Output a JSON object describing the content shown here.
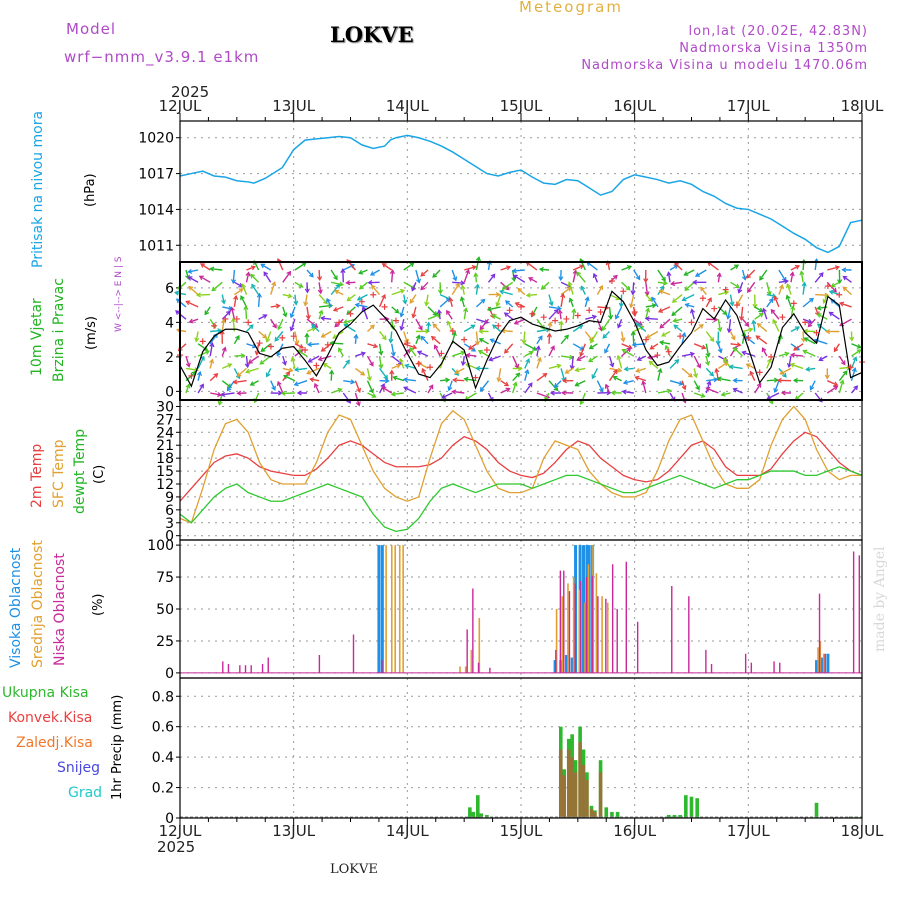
{
  "header": {
    "model_label": "Model",
    "model_name": "wrf−nmm_v3.9.1  e1km",
    "title": "LOKVE",
    "product": "Meteogram",
    "coords": "lon,lat (20.02E, 42.83N)",
    "altitude": "Nadmorska Visina 1350m",
    "model_altitude": "Nadmorska Visina u modelu 1470.06m",
    "footer_title": "LOKVE",
    "credit": "made by Angel"
  },
  "colors": {
    "header_purple": "#b04ac8",
    "header_orange": "#e2b042",
    "pressure": "#19a5e6",
    "wind_green": "#22b422",
    "temp_red": "#e84040",
    "sfc_orange": "#e0a030",
    "dew_green": "#2ec82e",
    "cloud_high": "#1e90e6",
    "cloud_mid": "#e0a030",
    "cloud_low": "#c8289a",
    "precip_total": "#2eb82e",
    "precip_conv": "#e84040",
    "precip_frz": "#f07828",
    "precip_snow": "#4848e0",
    "precip_hail": "#20c8c8"
  },
  "chart_data": [
    {
      "type": "line",
      "panel": "pressure",
      "ylabel_left": "Pritisak na nivou mora",
      "ylabel_unit": "(hPa)",
      "year": "2025",
      "x_ticks": [
        "12JUL",
        "13JUL",
        "14JUL",
        "15JUL",
        "16JUL",
        "17JUL",
        "18JUL"
      ],
      "yticks": [
        "1011",
        "1014",
        "1017",
        "1020"
      ],
      "ylim": [
        1009.6,
        1021.4
      ],
      "series": [
        {
          "x": [
            0,
            0.1,
            0.2,
            0.3,
            0.4,
            0.5,
            0.6,
            0.65,
            0.75,
            0.9,
            1.0,
            1.1,
            1.2,
            1.3,
            1.4,
            1.5,
            1.6,
            1.7,
            1.8,
            1.85,
            1.9,
            2.0,
            2.1,
            2.2,
            2.3,
            2.4,
            2.5,
            2.6,
            2.7,
            2.8,
            2.9,
            3.0,
            3.1,
            3.2,
            3.3,
            3.4,
            3.5,
            3.6,
            3.7,
            3.8,
            3.9,
            4.0,
            4.1,
            4.2,
            4.3,
            4.4,
            4.5,
            4.6,
            4.7,
            4.8,
            4.9,
            5.0,
            5.1,
            5.2,
            5.3,
            5.4,
            5.5,
            5.6,
            5.7,
            5.8,
            5.9,
            6.0
          ],
          "y": [
            1016.8,
            1017.0,
            1017.2,
            1016.8,
            1016.7,
            1016.4,
            1016.3,
            1016.2,
            1016.6,
            1017.5,
            1019.0,
            1019.8,
            1019.9,
            1020.0,
            1020.1,
            1020.0,
            1019.4,
            1019.1,
            1019.3,
            1019.8,
            1020.0,
            1020.2,
            1020.0,
            1019.7,
            1019.3,
            1018.8,
            1018.2,
            1017.6,
            1017.0,
            1016.8,
            1017.1,
            1017.3,
            1016.7,
            1016.2,
            1016.1,
            1016.5,
            1016.4,
            1015.8,
            1015.2,
            1015.5,
            1016.5,
            1016.9,
            1016.7,
            1016.5,
            1016.2,
            1016.4,
            1016.1,
            1015.5,
            1015.1,
            1014.5,
            1014.1,
            1014.0,
            1013.6,
            1013.2,
            1012.6,
            1012.0,
            1011.5,
            1010.8,
            1010.4,
            1010.9,
            1012.9,
            1013.1
          ]
        }
      ]
    },
    {
      "type": "line",
      "panel": "wind",
      "ylabel_left": [
        "10m Vjetar",
        "Brzina i Pravac"
      ],
      "ylabel_unit": "(m/s)",
      "compass": "W <--|--> E   N |  S",
      "yticks": [
        "0",
        "2",
        "4",
        "6"
      ],
      "ylim": [
        -0.5,
        7.5
      ],
      "series": [
        {
          "name": "speed",
          "x": [
            0,
            0.1,
            0.2,
            0.3,
            0.4,
            0.5,
            0.6,
            0.7,
            0.8,
            0.9,
            1.0,
            1.1,
            1.2,
            1.3,
            1.4,
            1.5,
            1.6,
            1.7,
            1.8,
            1.9,
            2.0,
            2.1,
            2.2,
            2.3,
            2.4,
            2.5,
            2.6,
            2.7,
            2.8,
            2.9,
            3.0,
            3.1,
            3.2,
            3.3,
            3.4,
            3.5,
            3.6,
            3.7,
            3.8,
            3.9,
            4.0,
            4.1,
            4.2,
            4.3,
            4.4,
            4.5,
            4.6,
            4.7,
            4.8,
            4.9,
            5.0,
            5.1,
            5.2,
            5.3,
            5.4,
            5.5,
            5.6,
            5.7,
            5.8,
            5.9,
            6.0
          ],
          "y": [
            1.5,
            0.3,
            2.3,
            3.2,
            3.6,
            3.6,
            3.4,
            2.2,
            2.0,
            2.5,
            2.6,
            1.8,
            0.9,
            2.1,
            3.4,
            3.9,
            4.6,
            5.0,
            4.3,
            3.5,
            2.2,
            1.0,
            0.8,
            1.6,
            2.9,
            2.4,
            0.2,
            1.8,
            3.2,
            4.1,
            4.3,
            3.9,
            3.7,
            3.5,
            3.6,
            3.8,
            4.1,
            4.0,
            5.8,
            5.2,
            4.0,
            2.4,
            1.5,
            1.7,
            2.6,
            3.4,
            4.8,
            4.2,
            5.3,
            4.4,
            2.5,
            0.5,
            1.4,
            3.7,
            4.5,
            3.4,
            2.8,
            5.5,
            5.0,
            0.8,
            1.1
          ]
        }
      ]
    },
    {
      "type": "line",
      "panel": "temperature",
      "ylabel_left": [
        "2m Temp",
        "SFC Temp",
        "dewpt Temp"
      ],
      "ylabel_unit": "(C)",
      "yticks": [
        "0",
        "3",
        "6",
        "9",
        "12",
        "15",
        "18",
        "21",
        "24",
        "27",
        "30"
      ],
      "ylim": [
        -1,
        31.5
      ],
      "series": [
        {
          "name": "2m Temp",
          "x": [
            0,
            0.1,
            0.2,
            0.3,
            0.4,
            0.5,
            0.6,
            0.7,
            0.8,
            0.9,
            1.0,
            1.1,
            1.2,
            1.3,
            1.4,
            1.5,
            1.6,
            1.7,
            1.8,
            1.9,
            2.0,
            2.1,
            2.2,
            2.3,
            2.4,
            2.5,
            2.6,
            2.7,
            2.8,
            2.9,
            3.0,
            3.1,
            3.2,
            3.3,
            3.4,
            3.5,
            3.6,
            3.7,
            3.8,
            3.9,
            4.0,
            4.1,
            4.2,
            4.3,
            4.4,
            4.5,
            4.6,
            4.7,
            4.8,
            4.9,
            5.0,
            5.1,
            5.2,
            5.3,
            5.4,
            5.5,
            5.6,
            5.7,
            5.8,
            5.9,
            6.0
          ],
          "y": [
            8,
            11,
            14,
            17,
            18.5,
            19,
            18,
            16,
            15,
            14.5,
            14,
            14,
            15.5,
            18,
            21,
            22,
            21,
            19,
            17,
            16,
            16,
            16,
            16.5,
            18,
            21,
            23,
            22,
            20,
            17,
            15,
            14,
            13.5,
            14.5,
            17,
            20,
            22,
            21,
            18,
            16,
            14,
            13,
            12.5,
            13,
            15,
            18,
            21,
            22,
            20,
            16,
            14,
            14,
            14,
            15.5,
            19,
            22,
            24,
            23,
            20,
            17,
            15,
            14
          ]
        },
        {
          "name": "SFC Temp",
          "x": [
            0,
            0.1,
            0.2,
            0.3,
            0.4,
            0.5,
            0.6,
            0.7,
            0.8,
            0.9,
            1.0,
            1.1,
            1.2,
            1.3,
            1.4,
            1.5,
            1.6,
            1.7,
            1.8,
            1.9,
            2.0,
            2.1,
            2.2,
            2.3,
            2.4,
            2.5,
            2.6,
            2.7,
            2.8,
            2.9,
            3.0,
            3.1,
            3.2,
            3.3,
            3.4,
            3.5,
            3.6,
            3.7,
            3.8,
            3.9,
            4.0,
            4.1,
            4.2,
            4.3,
            4.4,
            4.5,
            4.6,
            4.7,
            4.8,
            4.9,
            5.0,
            5.1,
            5.2,
            5.3,
            5.4,
            5.5,
            5.6,
            5.7,
            5.8,
            5.9,
            6.0
          ],
          "y": [
            4,
            3,
            11,
            20,
            26,
            27,
            24,
            17,
            13,
            12,
            12,
            12,
            17,
            24,
            28,
            27,
            21,
            15,
            11,
            9,
            8,
            9,
            18,
            26,
            29,
            27,
            21,
            15,
            11,
            10,
            10,
            11,
            18,
            22,
            21,
            20,
            15,
            12,
            10,
            9,
            9,
            10,
            15,
            22,
            27,
            28,
            22,
            16,
            12,
            11,
            11,
            13,
            21,
            27,
            30,
            27,
            20,
            15,
            13,
            14,
            14
          ]
        },
        {
          "name": "dewpt Temp",
          "x": [
            0,
            0.1,
            0.2,
            0.3,
            0.4,
            0.5,
            0.6,
            0.7,
            0.8,
            0.9,
            1.0,
            1.1,
            1.2,
            1.3,
            1.4,
            1.5,
            1.6,
            1.7,
            1.8,
            1.9,
            2.0,
            2.1,
            2.2,
            2.3,
            2.4,
            2.5,
            2.6,
            2.7,
            2.8,
            2.9,
            3.0,
            3.1,
            3.2,
            3.3,
            3.4,
            3.5,
            3.6,
            3.7,
            3.8,
            3.9,
            4.0,
            4.1,
            4.2,
            4.3,
            4.4,
            4.5,
            4.6,
            4.7,
            4.8,
            4.9,
            5.0,
            5.1,
            5.2,
            5.3,
            5.4,
            5.5,
            5.6,
            5.7,
            5.8,
            5.9,
            6.0
          ],
          "y": [
            5,
            3,
            6,
            9,
            11,
            12,
            10,
            9,
            8,
            8,
            9,
            10,
            11,
            12,
            11,
            10,
            9,
            5,
            2,
            1,
            1.5,
            4,
            8,
            11,
            12,
            11,
            10,
            11,
            12,
            12,
            12,
            11,
            12,
            13,
            14,
            14,
            13,
            12,
            11,
            10,
            10,
            11,
            12,
            13,
            14,
            13,
            12,
            11,
            12,
            13,
            13,
            14,
            15,
            15,
            15,
            14,
            14,
            15,
            16,
            15,
            14
          ]
        }
      ]
    },
    {
      "type": "bar",
      "panel": "clouds",
      "ylabel_left": [
        "Visoka Oblacnost",
        "Srednja Oblacnost",
        "Niska Oblacnost"
      ],
      "ylabel_unit": "(%)",
      "yticks": [
        "0",
        "25",
        "50",
        "75",
        "100"
      ],
      "ylim": [
        -4,
        104
      ],
      "series": [
        {
          "name": "Visoka Oblacnost",
          "x": [
            1.75,
            1.78,
            3.3,
            3.35,
            3.4,
            3.45,
            3.48,
            3.52,
            3.55,
            3.58,
            3.6,
            3.63,
            5.6,
            5.62,
            5.65,
            5.7
          ],
          "y": [
            100,
            100,
            10,
            10,
            14,
            12,
            100,
            100,
            100,
            100,
            100,
            100,
            10,
            10,
            12,
            15
          ]
        },
        {
          "name": "Srednja Oblacnost",
          "x": [
            1.8,
            1.85,
            1.88,
            1.92,
            1.95,
            2.45,
            2.5,
            2.55,
            2.62,
            3.3,
            3.35,
            3.4,
            3.45,
            3.5,
            3.55,
            3.58,
            3.62,
            3.65,
            3.7,
            3.75,
            5.6,
            5.62,
            5.65
          ],
          "y": [
            100,
            100,
            100,
            100,
            100,
            5,
            5,
            18,
            43,
            50,
            60,
            70,
            75,
            65,
            55,
            85,
            100,
            78,
            60,
            55,
            20,
            25,
            15
          ]
        },
        {
          "name": "Niska Oblacnost",
          "x": [
            0.35,
            0.4,
            0.5,
            0.55,
            0.6,
            0.7,
            0.75,
            1.2,
            1.5,
            1.75,
            2.5,
            2.55,
            2.6,
            2.7,
            3.28,
            3.32,
            3.35,
            3.4,
            3.45,
            3.5,
            3.55,
            3.6,
            3.65,
            3.72,
            3.78,
            3.82,
            3.9,
            4.0,
            4.3,
            4.45,
            4.6,
            4.65,
            4.95,
            5.0,
            5.2,
            5.25,
            5.6,
            5.65,
            5.9,
            5.95
          ],
          "y": [
            9,
            7,
            6,
            6,
            6,
            7,
            12,
            14,
            30,
            10,
            34,
            66,
            8,
            4,
            18,
            80,
            80,
            64,
            70,
            72,
            75,
            76,
            60,
            58,
            85,
            50,
            87,
            40,
            68,
            60,
            18,
            7,
            15,
            8,
            9,
            8,
            62,
            15,
            95,
            92
          ]
        }
      ]
    },
    {
      "type": "bar",
      "panel": "precipitation",
      "legend": [
        "Ukupna Kisa",
        "Konvek.Kisa",
        "Zaledj.Kisa",
        "Snijeg",
        "Grad"
      ],
      "ylabel_unit": "1hr Precip (mm)",
      "yticks": [
        "0",
        "0.2",
        "0.4",
        "0.6",
        "0.8"
      ],
      "ylim": [
        0,
        0.92
      ],
      "x_ticks": [
        "12JUL",
        "13JUL",
        "14JUL",
        "15JUL",
        "16JUL",
        "17JUL",
        "18JUL"
      ],
      "year": "2025",
      "series": [
        {
          "name": "Ukupna Kisa",
          "x": [
            2.55,
            2.58,
            2.62,
            2.65,
            2.7,
            3.35,
            3.38,
            3.42,
            3.45,
            3.48,
            3.52,
            3.55,
            3.58,
            3.62,
            3.65,
            3.7,
            3.75,
            3.8,
            3.85,
            4.3,
            4.35,
            4.4,
            4.45,
            4.5,
            4.55,
            5.6,
            5.9,
            5.95
          ],
          "y": [
            0.07,
            0.04,
            0.15,
            0.03,
            0.02,
            0.6,
            0.32,
            0.52,
            0.55,
            0.38,
            0.6,
            0.45,
            0.3,
            0.08,
            0.05,
            0.38,
            0.07,
            0.04,
            0.04,
            0.02,
            0.02,
            0.02,
            0.15,
            0.14,
            0.13,
            0.1,
            0.01,
            0.01
          ]
        },
        {
          "name": "Konvek.Kisa",
          "x": [
            3.35,
            3.38,
            3.42,
            3.45,
            3.48,
            3.52,
            3.55,
            3.58,
            3.62,
            3.65,
            3.7
          ],
          "y": [
            0.45,
            0.28,
            0.45,
            0.4,
            0.3,
            0.5,
            0.35,
            0.25,
            0.06,
            0.04,
            0.3
          ]
        }
      ]
    }
  ]
}
